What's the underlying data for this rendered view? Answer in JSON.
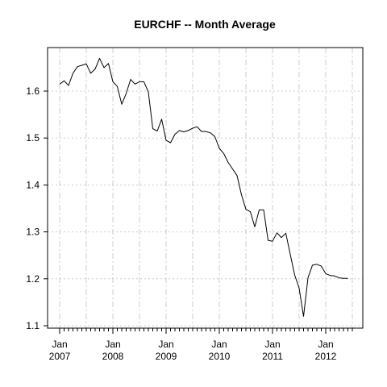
{
  "chart_data": {
    "type": "line",
    "title": "EURCHF -- Month Average",
    "xlabel": "",
    "ylabel": "",
    "ylim": [
      1.1,
      1.7
    ],
    "y_ticks": [
      1.1,
      1.2,
      1.3,
      1.4,
      1.5,
      1.6
    ],
    "y_tick_labels": [
      "1.1",
      "1.2",
      "1.3",
      "1.4",
      "1.5",
      "1.6"
    ],
    "x_ticks": [
      {
        "month": "Jan",
        "year": "2007",
        "x": "2007-01"
      },
      {
        "month": "Jan",
        "year": "2008",
        "x": "2008-01"
      },
      {
        "month": "Jan",
        "year": "2009",
        "x": "2009-01"
      },
      {
        "month": "Jan",
        "year": "2010",
        "x": "2010-01"
      },
      {
        "month": "Jan",
        "year": "2011",
        "x": "2011-01"
      },
      {
        "month": "Jan",
        "year": "2012",
        "x": "2012-01"
      }
    ],
    "grid": true,
    "line_color": "#000000",
    "grid_color": "#cccccc",
    "series": [
      {
        "x": [
          "2007-01",
          "2007-02",
          "2007-03",
          "2007-04",
          "2007-05",
          "2007-06",
          "2007-07",
          "2007-08",
          "2007-09",
          "2007-10",
          "2007-11",
          "2007-12",
          "2008-01",
          "2008-02",
          "2008-03",
          "2008-04",
          "2008-05",
          "2008-06",
          "2008-07",
          "2008-08",
          "2008-09",
          "2008-10",
          "2008-11",
          "2008-12",
          "2009-01",
          "2009-02",
          "2009-03",
          "2009-04",
          "2009-05",
          "2009-06",
          "2009-07",
          "2009-08",
          "2009-09",
          "2009-10",
          "2009-11",
          "2009-12",
          "2010-01",
          "2010-02",
          "2010-03",
          "2010-04",
          "2010-05",
          "2010-06",
          "2010-07",
          "2010-08",
          "2010-09",
          "2010-10",
          "2010-11",
          "2010-12",
          "2011-01",
          "2011-02",
          "2011-03",
          "2011-04",
          "2011-05",
          "2011-06",
          "2011-07",
          "2011-08",
          "2011-09",
          "2011-10",
          "2011-11",
          "2011-12",
          "2012-01",
          "2012-02",
          "2012-03",
          "2012-04",
          "2012-05",
          "2012-06"
        ],
        "values": [
          1.615,
          1.622,
          1.612,
          1.638,
          1.652,
          1.655,
          1.658,
          1.638,
          1.647,
          1.67,
          1.65,
          1.659,
          1.62,
          1.61,
          1.572,
          1.595,
          1.625,
          1.615,
          1.62,
          1.62,
          1.598,
          1.52,
          1.515,
          1.54,
          1.495,
          1.49,
          1.508,
          1.516,
          1.513,
          1.516,
          1.521,
          1.524,
          1.514,
          1.514,
          1.511,
          1.503,
          1.478,
          1.467,
          1.448,
          1.434,
          1.42,
          1.379,
          1.348,
          1.343,
          1.311,
          1.347,
          1.347,
          1.282,
          1.28,
          1.298,
          1.288,
          1.297,
          1.252,
          1.208,
          1.18,
          1.12,
          1.202,
          1.229,
          1.231,
          1.227,
          1.211,
          1.207,
          1.206,
          1.202,
          1.201,
          1.201
        ]
      }
    ]
  }
}
